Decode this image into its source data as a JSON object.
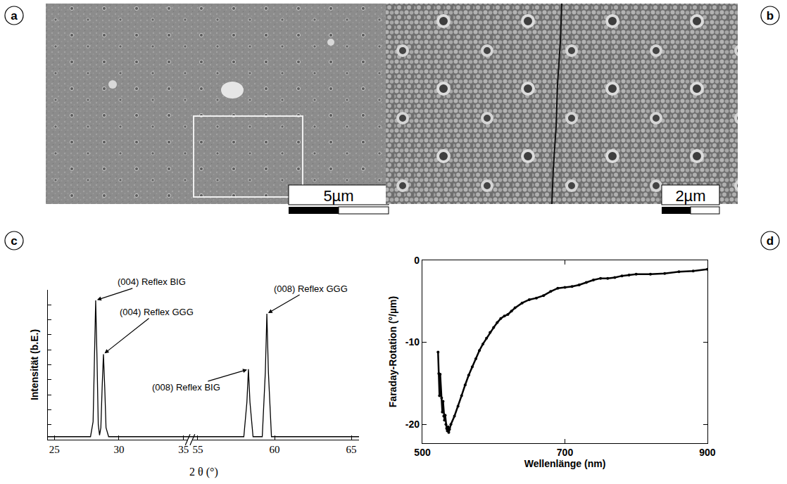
{
  "panels": [
    {
      "label": "a",
      "type": "micrograph",
      "scale_bar": "5µm"
    },
    {
      "label": "b",
      "type": "micrograph",
      "scale_bar": "2µm"
    }
  ],
  "chart_data": [
    {
      "label": "c",
      "type": "line",
      "x_label": "2 θ (°)",
      "y_label": "Intensität (b.E.)",
      "x": [
        24.5,
        27.8,
        28.0,
        28.1,
        28.2,
        28.3,
        28.4,
        28.5,
        28.6,
        28.7,
        28.8,
        28.9,
        29.0,
        29.2,
        35.5,
        54.5,
        58.0,
        58.2,
        58.3,
        58.4,
        58.6,
        59.2,
        59.4,
        59.5,
        59.6,
        59.8,
        65.5
      ],
      "values": [
        0.02,
        0.02,
        0.12,
        0.55,
        0.93,
        0.55,
        0.1,
        0.03,
        0.08,
        0.35,
        0.57,
        0.35,
        0.08,
        0.02,
        0.02,
        0.02,
        0.02,
        0.25,
        0.47,
        0.25,
        0.02,
        0.02,
        0.45,
        0.84,
        0.45,
        0.02,
        0.02
      ],
      "color": "#000000",
      "xlim": [
        [
          24.5,
          35.5
        ],
        [
          54.5,
          65.5
        ]
      ],
      "xticks": [
        25,
        30,
        35,
        55,
        60,
        65
      ],
      "ylim": [
        0,
        1
      ],
      "yticks": [
        0,
        0.1,
        0.2,
        0.3,
        0.4,
        0.5,
        0.6,
        0.7,
        0.8,
        0.9,
        1
      ],
      "tick_labels": "x",
      "annotations": [
        {
          "text": "(004) Reflex BIG",
          "x": 28.2,
          "y": 0.93
        },
        {
          "text": "(004) Reflex GGG",
          "x": 28.8,
          "y": 0.57
        },
        {
          "text": "(008) Reflex GGG",
          "x": 59.5,
          "y": 0.84
        },
        {
          "text": "(008) Reflex BIG",
          "x": 58.3,
          "y": 0.47
        }
      ]
    },
    {
      "label": "d",
      "type": "scatter",
      "x_label": "Wellenlänge (nm)",
      "y_label": "Faraday-Rotation (°/µm)",
      "x": [
        522,
        523,
        524,
        525,
        527,
        528,
        529,
        530,
        531,
        532,
        533,
        534,
        535,
        536,
        537,
        538,
        540,
        545,
        550,
        555,
        560,
        565,
        570,
        575,
        580,
        585,
        590,
        595,
        600,
        605,
        610,
        615,
        620,
        625,
        630,
        640,
        650,
        660,
        670,
        680,
        690,
        700,
        710,
        720,
        730,
        740,
        750,
        760,
        770,
        780,
        790,
        800,
        820,
        840,
        860,
        880,
        900
      ],
      "values": [
        -11.2,
        -13.8,
        -16.5,
        -13.9,
        -16.8,
        -18.5,
        -17.2,
        -19.0,
        -19.5,
        -18.9,
        -20.0,
        -20.5,
        -20.8,
        -20.3,
        -21.0,
        -20.6,
        -20.0,
        -19.0,
        -17.8,
        -16.5,
        -15.2,
        -14.0,
        -13.0,
        -12.0,
        -11.0,
        -10.2,
        -9.5,
        -8.8,
        -8.2,
        -7.6,
        -7.1,
        -6.8,
        -6.6,
        -6.2,
        -5.8,
        -5.2,
        -4.8,
        -4.6,
        -4.3,
        -3.8,
        -3.4,
        -3.3,
        -3.2,
        -3.0,
        -2.7,
        -2.4,
        -2.2,
        -2.2,
        -2.1,
        -1.9,
        -1.8,
        -1.7,
        -1.7,
        -1.6,
        -1.4,
        -1.3,
        -1.1
      ],
      "color": "#000000",
      "marker": "circle",
      "line_style": "solid",
      "xlim": [
        500,
        900
      ],
      "xticks": [
        500,
        700,
        900
      ],
      "ylim": [
        -22.3,
        0
      ],
      "yticks": [
        -20,
        -10,
        0
      ]
    }
  ]
}
